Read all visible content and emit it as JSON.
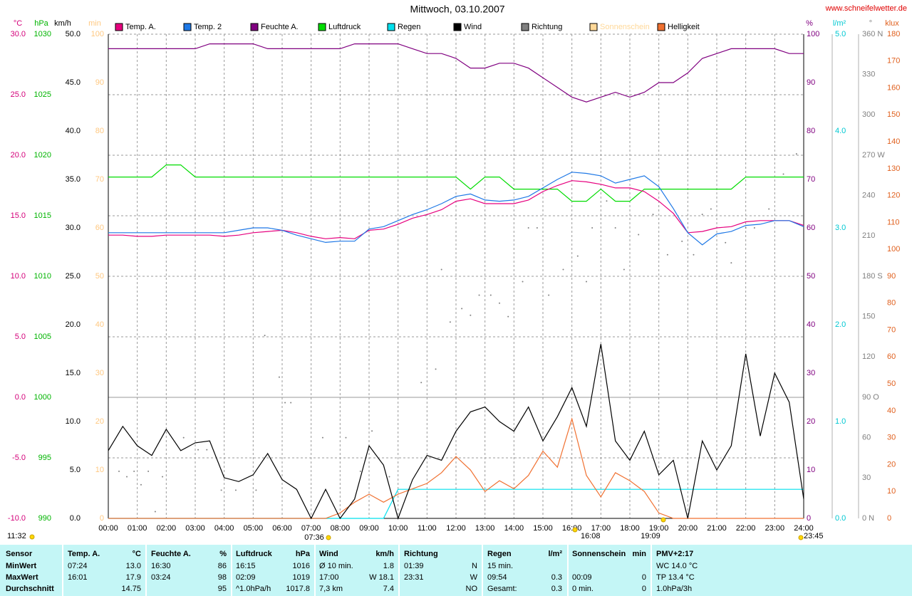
{
  "chart_data": {
    "type": "line",
    "title": "Mittwoch, 03.10.2007",
    "source": "www.schneifelwetter.de",
    "xlim": [
      0,
      24
    ],
    "xticks": [
      {
        "value": 0,
        "label": "00:00"
      },
      {
        "value": 1,
        "label": "01:00"
      },
      {
        "value": 2,
        "label": "02:00"
      },
      {
        "value": 3,
        "label": "03:00"
      },
      {
        "value": 4,
        "label": "04:00"
      },
      {
        "value": 5,
        "label": "05:00"
      },
      {
        "value": 6,
        "label": "06:00"
      },
      {
        "value": 7,
        "label": "07:00"
      },
      {
        "value": 8,
        "label": "08:00"
      },
      {
        "value": 9,
        "label": "09:00"
      },
      {
        "value": 10,
        "label": "10:00"
      },
      {
        "value": 11,
        "label": "11:00"
      },
      {
        "value": 12,
        "label": "12:00"
      },
      {
        "value": 13,
        "label": "13:00"
      },
      {
        "value": 14,
        "label": "14:00"
      },
      {
        "value": 15,
        "label": "15:00"
      },
      {
        "value": 16,
        "label": "16:00"
      },
      {
        "value": 17,
        "label": "17:00"
      },
      {
        "value": 18,
        "label": "18:00"
      },
      {
        "value": 19,
        "label": "19:00"
      },
      {
        "value": 20,
        "label": "20:00"
      },
      {
        "value": 21,
        "label": "21:00"
      },
      {
        "value": 22,
        "label": "22:00"
      },
      {
        "value": 23,
        "label": "23:00"
      },
      {
        "value": 24,
        "label": "24:00"
      }
    ],
    "grid": true,
    "axes": {
      "temp": {
        "unit": "°C",
        "color": "#d4007a",
        "lim": [
          -10,
          30
        ],
        "ticks": [
          {
            "value": -10,
            "label": "-10.0"
          },
          {
            "value": -5,
            "label": "-5.0"
          },
          {
            "value": 0,
            "label": "0.0"
          },
          {
            "value": 5,
            "label": "5.0"
          },
          {
            "value": 10,
            "label": "10.0"
          },
          {
            "value": 15,
            "label": "15.0"
          },
          {
            "value": 20,
            "label": "20.0"
          },
          {
            "value": 25,
            "label": "25.0"
          },
          {
            "value": 30,
            "label": "30.0"
          }
        ]
      },
      "hpa": {
        "unit": "hPa",
        "color": "#00b400",
        "lim": [
          990,
          1030
        ],
        "ticks": [
          990,
          995,
          1000,
          1005,
          1010,
          1015,
          1020,
          1025,
          1030
        ]
      },
      "kmh": {
        "unit": "km/h",
        "color": "#000000",
        "lim": [
          0,
          50
        ],
        "ticks": [
          {
            "value": 0,
            "label": "0.0"
          },
          {
            "value": 5,
            "label": "5.0"
          },
          {
            "value": 10,
            "label": "10.0"
          },
          {
            "value": 15,
            "label": "15.0"
          },
          {
            "value": 20,
            "label": "20.0"
          },
          {
            "value": 25,
            "label": "25.0"
          },
          {
            "value": 30,
            "label": "30.0"
          },
          {
            "value": 35,
            "label": "35.0"
          },
          {
            "value": 40,
            "label": "40.0"
          },
          {
            "value": 45,
            "label": "45.0"
          },
          {
            "value": 50,
            "label": "50.0"
          }
        ]
      },
      "min": {
        "unit": "min",
        "color": "#ffc880",
        "lim": [
          0,
          100
        ],
        "ticks": [
          0,
          10,
          20,
          30,
          40,
          50,
          60,
          70,
          80,
          90,
          100
        ]
      },
      "pct": {
        "unit": "%",
        "color": "#800080",
        "lim": [
          0,
          100
        ],
        "ticks": [
          0,
          10,
          20,
          30,
          40,
          50,
          60,
          70,
          80,
          90,
          100
        ]
      },
      "rain": {
        "unit": "l/m²",
        "color": "#00c8d2",
        "lim": [
          0,
          5
        ],
        "ticks": [
          {
            "value": 0,
            "label": "0.0"
          },
          {
            "value": 1,
            "label": "1.0"
          },
          {
            "value": 2,
            "label": "2.0"
          },
          {
            "value": 3,
            "label": "3.0"
          },
          {
            "value": 4,
            "label": "4.0"
          },
          {
            "value": 5,
            "label": "5.0"
          }
        ]
      },
      "dir": {
        "unit": "°",
        "color": "#808080",
        "lim": [
          0,
          360
        ],
        "ticks": [
          {
            "value": 0,
            "label": "0 N"
          },
          30,
          60,
          {
            "value": 90,
            "label": "90 O"
          },
          120,
          150,
          {
            "value": 180,
            "label": "180 S"
          },
          210,
          240,
          {
            "value": 270,
            "label": "270 W"
          },
          300,
          330,
          {
            "value": 360,
            "label": "360 N"
          }
        ]
      },
      "klux": {
        "unit": "klux",
        "color": "#e0601e",
        "lim": [
          0,
          180
        ],
        "ticks": [
          0,
          10,
          20,
          30,
          40,
          50,
          60,
          70,
          80,
          90,
          100,
          110,
          120,
          130,
          140,
          150,
          160,
          170,
          180
        ]
      }
    },
    "x": [
      0,
      0.5,
      1,
      1.5,
      2,
      2.5,
      3,
      3.5,
      4,
      4.5,
      5,
      5.5,
      6,
      6.5,
      7,
      7.5,
      8,
      8.5,
      9,
      9.5,
      10,
      10.5,
      11,
      11.5,
      12,
      12.5,
      13,
      13.5,
      14,
      14.5,
      15,
      15.5,
      16,
      16.5,
      17,
      17.5,
      18,
      18.5,
      19,
      19.5,
      20,
      20.5,
      21,
      21.5,
      22,
      22.5,
      23,
      23.5,
      24
    ],
    "series": [
      {
        "name": "Temp. A.",
        "color": "#e6007e",
        "axis": "temp",
        "values": [
          13.4,
          13.4,
          13.3,
          13.3,
          13.4,
          13.4,
          13.4,
          13.4,
          13.3,
          13.4,
          13.6,
          13.7,
          13.8,
          13.6,
          13.3,
          13.1,
          13.2,
          13.1,
          13.8,
          13.9,
          14.3,
          14.8,
          15.1,
          15.5,
          16.2,
          16.4,
          16.0,
          16.0,
          16.0,
          16.3,
          17.0,
          17.5,
          17.9,
          17.8,
          17.6,
          17.3,
          17.3,
          17.0,
          16.2,
          15.2,
          13.6,
          13.7,
          14.0,
          14.1,
          14.5,
          14.6,
          14.6,
          14.6,
          14.2
        ]
      },
      {
        "name": "Temp. 2",
        "color": "#1e78e6",
        "axis": "temp",
        "values": [
          13.6,
          13.6,
          13.6,
          13.6,
          13.6,
          13.6,
          13.6,
          13.6,
          13.6,
          13.8,
          14.0,
          14.0,
          13.8,
          13.4,
          13.1,
          12.8,
          12.9,
          12.9,
          13.9,
          14.1,
          14.6,
          15.1,
          15.5,
          16.0,
          16.6,
          16.8,
          16.3,
          16.2,
          16.3,
          16.6,
          17.3,
          18.0,
          18.6,
          18.5,
          18.3,
          17.7,
          18.0,
          18.3,
          17.4,
          15.6,
          13.6,
          12.6,
          13.5,
          13.7,
          14.2,
          14.3,
          14.6,
          14.6,
          14.1
        ]
      },
      {
        "name": "Feuchte A.",
        "color": "#800080",
        "axis": "pct",
        "values": [
          97,
          97,
          97,
          97,
          97,
          97,
          97,
          98,
          98,
          98,
          98,
          97,
          97,
          97,
          97,
          97,
          97,
          98,
          98,
          98,
          98,
          97,
          96,
          96,
          95,
          93,
          93,
          94,
          94,
          93,
          91,
          89,
          87,
          86,
          87,
          88,
          87,
          88,
          90,
          90,
          92,
          95,
          96,
          97,
          97,
          97,
          97,
          96,
          96
        ]
      },
      {
        "name": "Luftdruck",
        "color": "#00dc00",
        "axis": "hpa",
        "values": [
          1018.2,
          1018.2,
          1018.2,
          1018.2,
          1019.2,
          1019.2,
          1018.2,
          1018.2,
          1018.2,
          1018.2,
          1018.2,
          1018.2,
          1018.2,
          1018.2,
          1018.2,
          1018.2,
          1018.2,
          1018.2,
          1018.2,
          1018.2,
          1018.2,
          1018.2,
          1018.2,
          1018.2,
          1018.2,
          1017.2,
          1018.2,
          1018.2,
          1017.2,
          1017.2,
          1017.2,
          1017.2,
          1016.2,
          1016.2,
          1017.2,
          1016.2,
          1016.2,
          1017.2,
          1017.2,
          1017.2,
          1017.2,
          1017.2,
          1017.2,
          1017.2,
          1018.2,
          1018.2,
          1018.2,
          1018.2,
          1018.2
        ]
      },
      {
        "name": "Regen",
        "color": "#00e0ee",
        "axis": "rain",
        "values": [
          0,
          0,
          0,
          0,
          0,
          0,
          0,
          0,
          0,
          0,
          0,
          0,
          0,
          0,
          0,
          0,
          0,
          0,
          0,
          0,
          0.3,
          0.3,
          0.3,
          0.3,
          0.3,
          0.3,
          0.3,
          0.3,
          0.3,
          0.3,
          0.3,
          0.3,
          0.3,
          0.3,
          0.3,
          0.3,
          0.3,
          0.3,
          0.3,
          0.3,
          0.3,
          0.3,
          0.3,
          0.3,
          0.3,
          0.3,
          0.3,
          0.3,
          0.3
        ]
      },
      {
        "name": "Wind",
        "color": "#000000",
        "axis": "kmh",
        "values": [
          7.0,
          9.5,
          7.5,
          6.5,
          9.2,
          7.0,
          7.8,
          8.0,
          4.2,
          3.8,
          4.5,
          6.7,
          4.0,
          3.0,
          0,
          3.0,
          0,
          2.0,
          7.5,
          5.5,
          0,
          4.0,
          6.5,
          6.0,
          9.0,
          11.0,
          11.5,
          10.0,
          9.0,
          11.5,
          8.0,
          10.5,
          13.5,
          9.5,
          18.0,
          8.0,
          6.0,
          9.0,
          4.5,
          6.0,
          0,
          8.0,
          5.0,
          7.5,
          17.0,
          8.5,
          15.0,
          12.0,
          2.0
        ]
      },
      {
        "name": "Richtung",
        "color": "#808080",
        "axis": "dir",
        "marker": "dots",
        "x": [
          0.37,
          0.64,
          0.89,
          1.13,
          1.38,
          1.62,
          1.87,
          2.6,
          3.1,
          3.4,
          3.9,
          4.4,
          5.1,
          5.4,
          5.9,
          6.1,
          6.3,
          7.4,
          8.2,
          8.7,
          9.1,
          9.7,
          10.8,
          11.3,
          11.5,
          11.8,
          12.2,
          12.5,
          12.8,
          13.2,
          13.5,
          13.8,
          14.3,
          14.5,
          14.8,
          15.2,
          15.7,
          16.2,
          16.5,
          16.7,
          17.2,
          17.5,
          17.8,
          18.3,
          18.8,
          19.3,
          19.8,
          20.2,
          20.5,
          20.8,
          21.3,
          21.5,
          22,
          22.3,
          22.8,
          23.3,
          23.75
        ],
        "values": [
          35,
          31,
          35,
          25,
          35,
          5,
          31,
          60,
          51,
          51,
          21,
          21,
          21,
          136,
          105,
          86,
          86,
          60,
          60,
          35,
          65,
          31,
          101,
          111,
          185,
          146,
          156,
          151,
          166,
          166,
          160,
          150,
          176,
          216,
          216,
          166,
          185,
          195,
          176,
          216,
          236,
          216,
          185,
          211,
          226,
          196,
          206,
          196,
          226,
          230,
          205,
          190,
          216,
          216,
          230,
          256,
          271
        ]
      },
      {
        "name": "Sonnenschein",
        "color": "#ffd898",
        "axis": "min"
      },
      {
        "name": "Helligkeit",
        "color": "#f07030",
        "axis": "klux",
        "values": [
          0,
          0,
          0,
          0,
          0,
          0,
          0,
          0,
          0,
          0,
          0,
          0,
          0,
          0,
          0,
          0,
          2,
          6,
          9,
          6,
          9,
          11,
          13,
          17,
          23,
          18,
          10,
          14,
          11,
          16,
          25,
          19,
          37,
          16,
          8,
          17,
          14,
          10,
          2,
          0,
          0,
          0,
          0,
          0,
          0,
          0,
          0,
          0,
          0
        ]
      }
    ],
    "annotations": [
      "11:32",
      "07:36",
      "16:08",
      "19:09",
      "23:45"
    ],
    "table": {
      "row_labels": [
        "Sensor",
        "MinWert",
        "MaxWert",
        "Durchschnitt"
      ],
      "columns": [
        {
          "name": "Temp. A.",
          "unit": "°C",
          "cells": [
            {
              "left": "07:24",
              "right": "13.0"
            },
            {
              "left": "16:01",
              "right": "17.9"
            },
            {
              "right": "14.75"
            }
          ]
        },
        {
          "name": "Feuchte A.",
          "unit": "%",
          "cells": [
            {
              "left": "16:30",
              "right": "86"
            },
            {
              "left": "03:24",
              "right": "98"
            },
            {
              "right": "95"
            }
          ]
        },
        {
          "name": "Luftdruck",
          "unit": "hPa",
          "cells": [
            {
              "left": "16:15",
              "right": "1016"
            },
            {
              "left": "02:09",
              "right": "1019"
            },
            {
              "left": "^1.0hPa/h",
              "right": "1017.8"
            }
          ]
        },
        {
          "name": "Wind",
          "unit": "km/h",
          "cells": [
            {
              "left": "Ø 10 min.",
              "right": "1.8"
            },
            {
              "left": "17:00",
              "right": "W 18.1"
            },
            {
              "left": "7,3 km",
              "right": "7.4"
            }
          ]
        },
        {
          "name": "Richtung",
          "cells": [
            {
              "left": "01:39",
              "right": "N"
            },
            {
              "left": "23:31",
              "right": "W"
            },
            {
              "right": "NO"
            }
          ]
        },
        {
          "name": "Regen",
          "unit": "l/m²",
          "cells": [
            {
              "left": "15 min."
            },
            {
              "left": "09:54",
              "right": "0.3"
            },
            {
              "left": "Gesamt:",
              "right": "0.3"
            }
          ]
        },
        {
          "name": "Sonnenschein",
          "unit": "min",
          "cells": [
            null,
            {
              "left": "00:09",
              "right": "0"
            },
            {
              "left": "0 min.",
              "right": "0"
            }
          ]
        },
        {
          "name": "PMV+2:17",
          "cells": [
            {
              "left": "WC 14.0 °C"
            },
            {
              "left": "TP 13.4 °C"
            },
            {
              "left": "1.0hPa/3h"
            }
          ]
        }
      ]
    }
  }
}
